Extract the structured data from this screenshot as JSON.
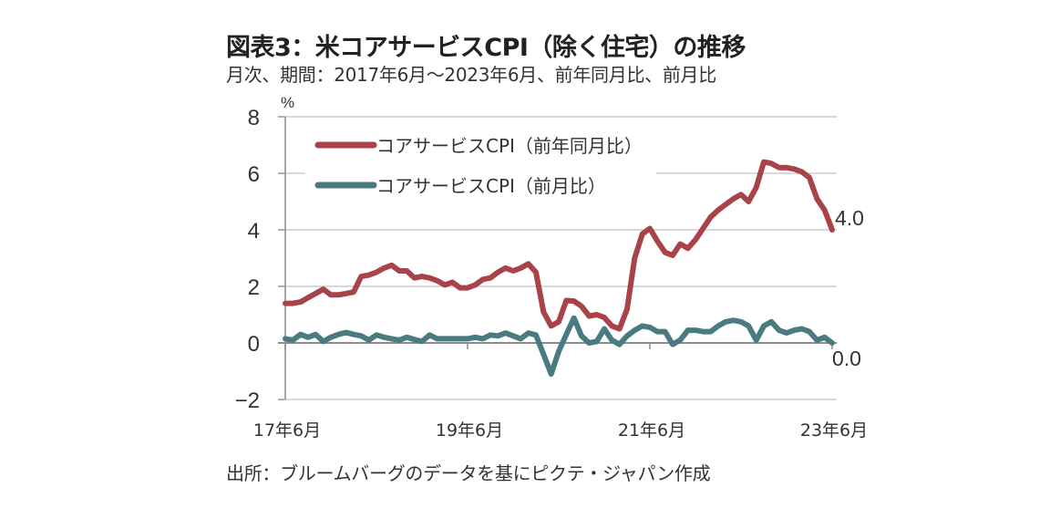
{
  "title": "図表3：米コアサービスCPI（除く住宅）の推移",
  "subtitle": "月次、期間：2017年6月～2023年6月、前年同月比、前月比",
  "source": "出所：ブルームバーグのデータを基にピクテ・ジャパン作成",
  "chart_data": {
    "type": "line",
    "title": "米コアサービスCPI（除く住宅）の推移",
    "xlabel": "",
    "ylabel": "%",
    "ylim": [
      -2,
      8
    ],
    "yticks": [
      8,
      6,
      4,
      2,
      0,
      -2
    ],
    "ytick_labels": [
      "8",
      "6",
      "4",
      "2",
      "0",
      "−2"
    ],
    "xtick_labels": [
      "17年6月",
      "19年6月",
      "21年6月",
      "23年6月"
    ],
    "xtick_index": [
      0,
      24,
      48,
      72
    ],
    "x_start": "2017-06",
    "x_end": "2023-06",
    "frequency": "monthly",
    "grid": true,
    "legend_position": "top-left",
    "series": [
      {
        "name": "コアサービスCPI（前年同月比）",
        "color": "#a8434a",
        "end_label": "4.0",
        "values": [
          1.4,
          1.4,
          1.45,
          1.6,
          1.75,
          1.9,
          1.7,
          1.7,
          1.75,
          1.8,
          2.35,
          2.4,
          2.5,
          2.65,
          2.75,
          2.55,
          2.55,
          2.3,
          2.35,
          2.3,
          2.2,
          2.05,
          2.15,
          1.95,
          1.95,
          2.05,
          2.25,
          2.3,
          2.5,
          2.65,
          2.55,
          2.65,
          2.8,
          2.5,
          1.1,
          0.6,
          0.75,
          1.5,
          1.48,
          1.3,
          0.95,
          1.0,
          0.9,
          0.6,
          0.5,
          1.2,
          3.0,
          3.85,
          4.05,
          3.6,
          3.2,
          3.1,
          3.5,
          3.35,
          3.65,
          4.05,
          4.45,
          4.7,
          4.9,
          5.1,
          5.25,
          5.0,
          5.5,
          6.4,
          6.35,
          6.2,
          6.2,
          6.15,
          6.05,
          5.85,
          5.1,
          4.7,
          4.0
        ]
      },
      {
        "name": "コアサービスCPI（前月比）",
        "color": "#4a7b80",
        "end_label": "0.0",
        "values": [
          0.15,
          0.1,
          0.3,
          0.2,
          0.3,
          0.05,
          0.2,
          0.3,
          0.37,
          0.3,
          0.25,
          0.1,
          0.28,
          0.2,
          0.15,
          0.1,
          0.2,
          0.12,
          0.05,
          0.28,
          0.15,
          0.15,
          0.15,
          0.15,
          0.15,
          0.2,
          0.15,
          0.28,
          0.25,
          0.35,
          0.25,
          0.15,
          0.35,
          0.28,
          -0.4,
          -1.1,
          -0.3,
          0.3,
          0.88,
          0.25,
          0.0,
          0.05,
          0.5,
          0.1,
          -0.05,
          0.25,
          0.45,
          0.6,
          0.55,
          0.4,
          0.4,
          -0.05,
          0.1,
          0.45,
          0.45,
          0.4,
          0.4,
          0.6,
          0.75,
          0.8,
          0.75,
          0.6,
          0.1,
          0.6,
          0.75,
          0.45,
          0.35,
          0.45,
          0.5,
          0.4,
          0.1,
          0.2,
          0.0
        ]
      }
    ]
  }
}
